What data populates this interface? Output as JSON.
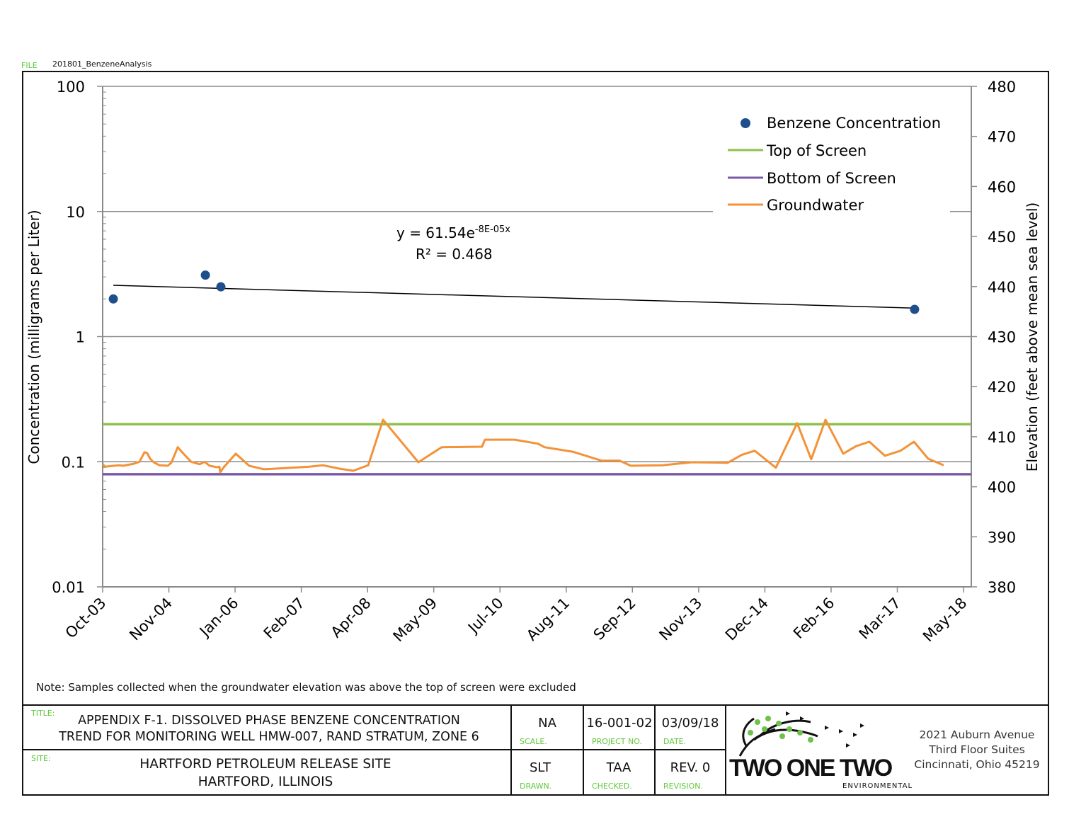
{
  "file": {
    "label": "FILE",
    "name": "201801_BenzeneAnalysis"
  },
  "note": "Note:  Samples collected when the groundwater elevation was above the top of screen were excluded",
  "title_block": {
    "title_label": "TITLE:",
    "title_line1": "APPENDIX F-1. DISSOLVED PHASE BENZENE CONCENTRATION",
    "title_line2": "TREND FOR MONITORING WELL HMW-007, RAND STRATUM, ZONE 6",
    "site_label": "SITE:",
    "site_line1": "HARTFORD PETROLEUM RELEASE SITE",
    "site_line2": "HARTFORD, ILLINOIS",
    "scale": "NA",
    "scale_label": "SCALE.",
    "project_no": "16-001-02",
    "project_label": "PROJECT  NO.",
    "date": "03/09/18",
    "date_label": "DATE.",
    "drawn": "SLT",
    "drawn_label": "DRAWN.",
    "checked": "TAA",
    "checked_label": "CHECKED.",
    "revision": "REV. 0",
    "revision_label": "REVISION.",
    "company_logo_text": "TWO ONE TWO",
    "company_logo_sub": "ENVIRONMENTAL",
    "address_line1": "2021 Auburn Avenue",
    "address_line2": "Third Floor Suites",
    "address_line3": "Cincinnati, Ohio 45219"
  },
  "chart_data": {
    "type": "scatter",
    "title": "",
    "xlabel": "",
    "ylabel": "Concentration (milligrams per Liter)",
    "y2label": "Elevation (feet above mean sea level)",
    "x_axis": {
      "type": "date",
      "unit": "excel-serial-day",
      "xlim": [
        37900,
        43280
      ],
      "major_unit_days": 410,
      "tick_labels": [
        "Oct-03",
        "Nov-04",
        "Jan-06",
        "Feb-07",
        "Apr-08",
        "May-09",
        "Jul-10",
        "Aug-11",
        "Sep-12",
        "Nov-13",
        "Dec-14",
        "Feb-16",
        "Mar-17",
        "May-18"
      ]
    },
    "y_axis": {
      "scale": "log",
      "ylim": [
        0.01,
        100
      ],
      "tick_labels": [
        "0.01",
        "0.1",
        "1",
        "10",
        "100"
      ],
      "grid": true
    },
    "y2_axis": {
      "scale": "linear",
      "ylim": [
        380,
        480
      ],
      "ticks": [
        380,
        390,
        400,
        410,
        420,
        430,
        440,
        450,
        460,
        470,
        480
      ]
    },
    "legend": {
      "position": "top-right",
      "entries": [
        "Benzene Concentration",
        "Top of Screen",
        "Bottom of Screen",
        "Groundwater"
      ]
    },
    "colors": {
      "benzene": "#1f4e8c",
      "top": "#8dc04a",
      "bottom": "#7a5aa8",
      "groundwater": "#f39237",
      "trend": "#000000",
      "grid": "#8a8a8a"
    },
    "series": [
      {
        "name": "Benzene Concentration",
        "axis": "left",
        "kind": "points",
        "x": [
          37966,
          38536,
          38632,
          42927
        ],
        "y": [
          2.0,
          3.1,
          2.5,
          1.65
        ]
      },
      {
        "name": "Top of Screen",
        "axis": "right",
        "kind": "hline",
        "y": 412.5
      },
      {
        "name": "Bottom of Screen",
        "axis": "right",
        "kind": "hline",
        "y": 402.5
      },
      {
        "name": "Groundwater",
        "axis": "right",
        "kind": "line",
        "x": [
          37900,
          37913,
          38001,
          38027,
          38093,
          38128,
          38159,
          38176,
          38194,
          38216,
          38251,
          38303,
          38325,
          38365,
          38400,
          38448,
          38501,
          38531,
          38562,
          38606,
          38623,
          38628,
          38650,
          38724,
          38807,
          38899,
          39180,
          39263,
          39368,
          39452,
          39544,
          39636,
          39855,
          39999,
          40249,
          40267,
          40451,
          40596,
          40635,
          40810,
          40990,
          41100,
          41170,
          41367,
          41547,
          41770,
          41858,
          41937,
          42068,
          42200,
          42287,
          42375,
          42485,
          42564,
          42647,
          42743,
          42840,
          42923,
          43011,
          43107
        ],
        "y": [
          404.6,
          404.0,
          404.3,
          404.2,
          404.6,
          405.0,
          406.9,
          406.7,
          405.6,
          404.9,
          404.3,
          404.2,
          404.8,
          407.9,
          406.6,
          405.0,
          404.5,
          405.0,
          404.2,
          403.9,
          404.0,
          402.9,
          403.9,
          406.6,
          404.2,
          403.5,
          404.0,
          404.3,
          403.6,
          403.2,
          404.3,
          413.4,
          404.9,
          407.9,
          408.0,
          409.4,
          409.4,
          408.6,
          407.9,
          407.0,
          405.2,
          405.2,
          404.2,
          404.3,
          404.9,
          404.8,
          406.4,
          407.2,
          403.8,
          412.7,
          405.5,
          413.4,
          406.6,
          408.1,
          409.0,
          406.2,
          407.2,
          409.0,
          405.6,
          404.3
        ]
      }
    ],
    "trendline": {
      "type": "exponential",
      "x": [
        37966,
        42927
      ],
      "y": [
        2.57,
        1.69
      ],
      "equation_prefix": "y = 61.54e",
      "equation_exponent": "-8E-05x",
      "r_squared": "R² = 0.468"
    }
  }
}
